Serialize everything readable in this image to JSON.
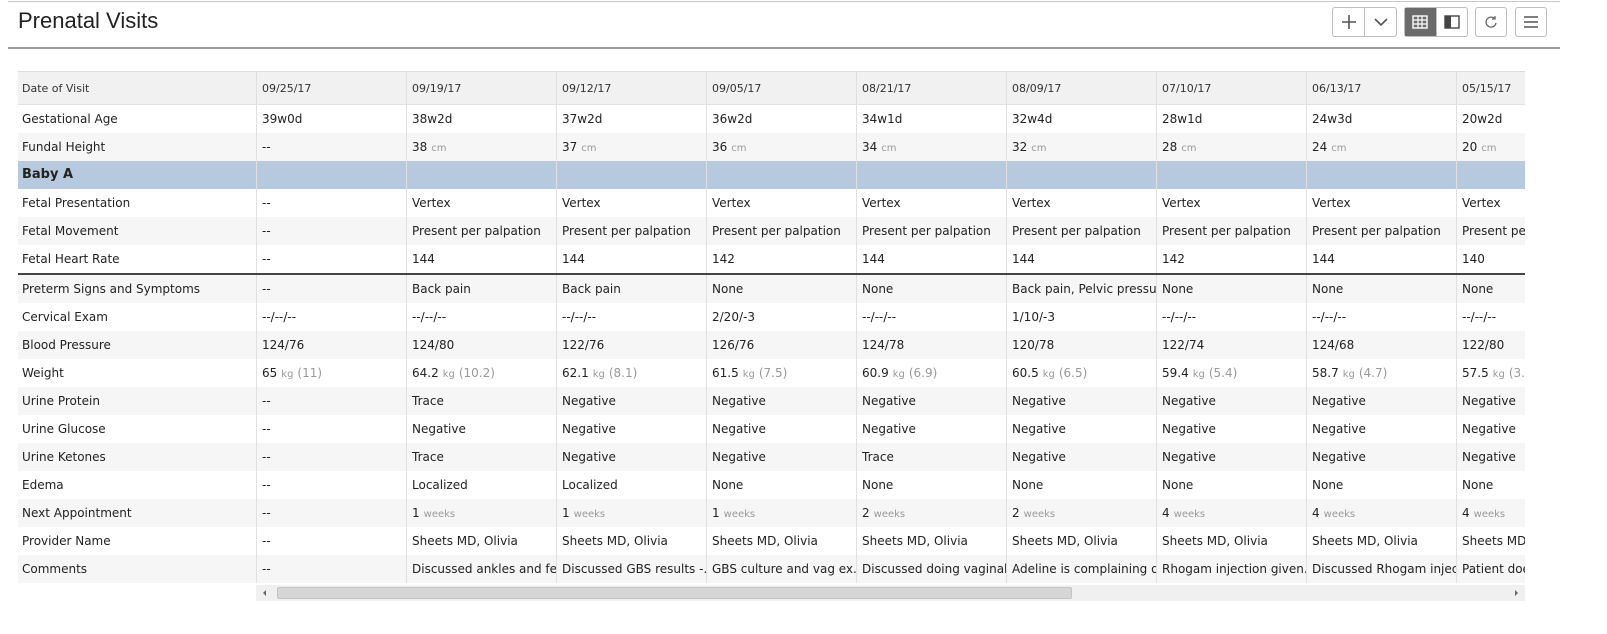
{
  "header": {
    "title": "Prenatal Visits"
  },
  "table": {
    "corner": "Date of Visit",
    "dates": [
      "09/25/17",
      "09/19/17",
      "09/12/17",
      "09/05/17",
      "08/21/17",
      "08/09/17",
      "07/10/17",
      "06/13/17",
      "05/15/17"
    ],
    "sections": [
      {
        "rows": [
          {
            "label": "Gestational Age",
            "cells": [
              "39w0d",
              "38w2d",
              "37w2d",
              "36w2d",
              "34w1d",
              "32w4d",
              "28w1d",
              "24w3d",
              "20w2d"
            ]
          },
          {
            "label": "Fundal Height",
            "cells": [
              "--",
              {
                "value": "38",
                "unit": "cm"
              },
              {
                "value": "37",
                "unit": "cm"
              },
              {
                "value": "36",
                "unit": "cm"
              },
              {
                "value": "34",
                "unit": "cm"
              },
              {
                "value": "32",
                "unit": "cm"
              },
              {
                "value": "28",
                "unit": "cm"
              },
              {
                "value": "24",
                "unit": "cm"
              },
              {
                "value": "20",
                "unit": "cm"
              }
            ]
          }
        ]
      },
      {
        "title": "Baby A",
        "rows": [
          {
            "label": "Fetal Presentation",
            "cells": [
              "--",
              "Vertex",
              "Vertex",
              "Vertex",
              "Vertex",
              "Vertex",
              "Vertex",
              "Vertex",
              "Vertex"
            ]
          },
          {
            "label": "Fetal Movement",
            "cells": [
              "--",
              "Present per palpation",
              "Present per palpation",
              "Present per palpation",
              "Present per palpation",
              "Present per palpation",
              "Present per palpation",
              "Present per palpation",
              "Present per palpation"
            ]
          },
          {
            "label": "Fetal Heart Rate",
            "cells": [
              "--",
              "144",
              "144",
              "142",
              "144",
              "144",
              "142",
              "144",
              "140"
            ]
          }
        ]
      },
      {
        "rows": [
          {
            "label": "Preterm Signs and Symptoms",
            "cells": [
              "--",
              "Back pain",
              "Back pain",
              "None",
              "None",
              "Back pain, Pelvic pressure",
              "None",
              "None",
              "None"
            ]
          },
          {
            "label": "Cervical Exam",
            "cells": [
              "--/--/--",
              "--/--/--",
              "--/--/--",
              "2/20/-3",
              "--/--/--",
              "1/10/-3",
              "--/--/--",
              "--/--/--",
              "--/--/--"
            ]
          },
          {
            "label": "Blood Pressure",
            "cells": [
              "124/76",
              "124/80",
              "122/76",
              "126/76",
              "124/78",
              "120/78",
              "122/74",
              "124/68",
              "122/80"
            ]
          },
          {
            "label": "Weight",
            "cells": [
              {
                "value": "65",
                "unit": "kg",
                "note": "(11)"
              },
              {
                "value": "64.2",
                "unit": "kg",
                "note": "(10.2)"
              },
              {
                "value": "62.1",
                "unit": "kg",
                "note": "(8.1)"
              },
              {
                "value": "61.5",
                "unit": "kg",
                "note": "(7.5)"
              },
              {
                "value": "60.9",
                "unit": "kg",
                "note": "(6.9)"
              },
              {
                "value": "60.5",
                "unit": "kg",
                "note": "(6.5)"
              },
              {
                "value": "59.4",
                "unit": "kg",
                "note": "(5.4)"
              },
              {
                "value": "58.7",
                "unit": "kg",
                "note": "(4.7)"
              },
              {
                "value": "57.5",
                "unit": "kg",
                "note": "(3."
              }
            ]
          },
          {
            "label": "Urine Protein",
            "cells": [
              "--",
              "Trace",
              "Negative",
              "Negative",
              "Negative",
              "Negative",
              "Negative",
              "Negative",
              "Negative"
            ]
          },
          {
            "label": "Urine Glucose",
            "cells": [
              "--",
              "Negative",
              "Negative",
              "Negative",
              "Negative",
              "Negative",
              "Negative",
              "Negative",
              "Negative"
            ]
          },
          {
            "label": "Urine Ketones",
            "cells": [
              "--",
              "Trace",
              "Negative",
              "Negative",
              "Trace",
              "Negative",
              "Negative",
              "Negative",
              "Negative"
            ]
          },
          {
            "label": "Edema",
            "cells": [
              "--",
              "Localized",
              "Localized",
              "None",
              "None",
              "None",
              "None",
              "None",
              "None"
            ]
          },
          {
            "label": "Next Appointment",
            "cells": [
              "--",
              {
                "value": "1",
                "unit": "weeks"
              },
              {
                "value": "1",
                "unit": "weeks"
              },
              {
                "value": "1",
                "unit": "weeks"
              },
              {
                "value": "2",
                "unit": "weeks"
              },
              {
                "value": "2",
                "unit": "weeks"
              },
              {
                "value": "4",
                "unit": "weeks"
              },
              {
                "value": "4",
                "unit": "weeks"
              },
              {
                "value": "4",
                "unit": "weeks"
              }
            ]
          },
          {
            "label": "Provider Name",
            "cells": [
              "--",
              "Sheets MD, Olivia",
              "Sheets MD, Olivia",
              "Sheets MD, Olivia",
              "Sheets MD, Olivia",
              "Sheets MD, Olivia",
              "Sheets MD, Olivia",
              "Sheets MD, Olivia",
              "Sheets MD, Olivia"
            ]
          },
          {
            "label": "Comments",
            "cells": [
              "--",
              "Discussed ankles and fe...",
              "Discussed GBS results -...",
              "GBS culture and vag ex...",
              "Discussed doing vaginal...",
              "Adeline is complaining o...",
              "Rhogam injection given...",
              "Discussed Rhogam injec...",
              "Patient doe"
            ]
          }
        ]
      }
    ]
  }
}
